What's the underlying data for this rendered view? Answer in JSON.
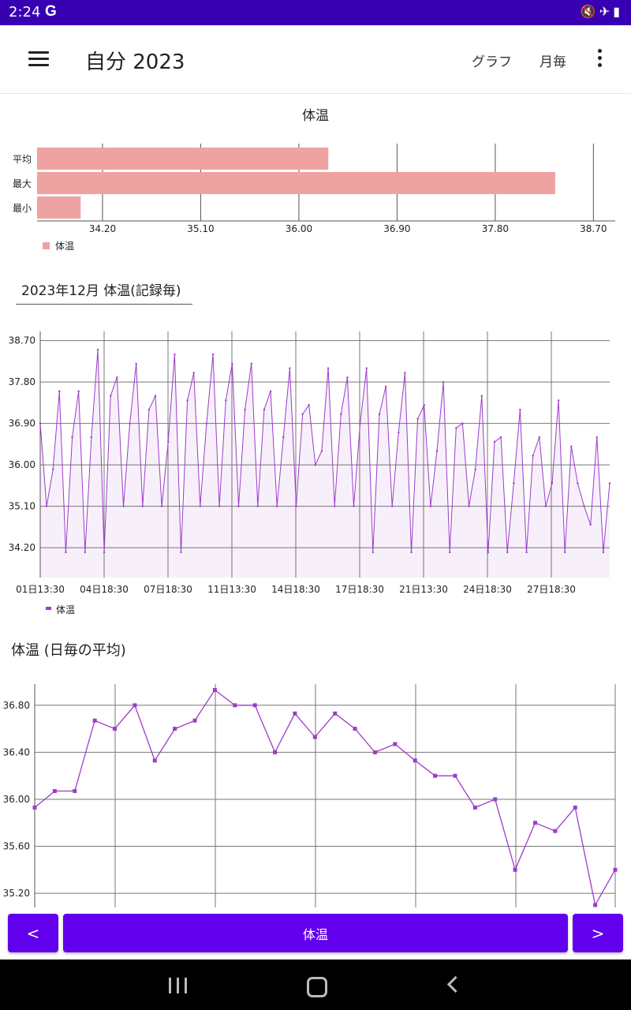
{
  "status_bar": {
    "time": "2:24",
    "g_label": "G",
    "icons": [
      "mute-icon",
      "airplane-icon",
      "battery-icon"
    ]
  },
  "app_bar": {
    "title": "自分 2023",
    "action_graph": "グラフ",
    "action_monthly": "月毎"
  },
  "summary_chart": {
    "title": "体温",
    "legend": "体温",
    "chart_data": {
      "type": "bar",
      "orientation": "horizontal",
      "title": "体温",
      "categories": [
        "平均",
        "最大",
        "最小"
      ],
      "values": [
        36.27,
        38.35,
        34.0
      ],
      "xlim": [
        33.6,
        38.9
      ],
      "x_ticks": [
        34.2,
        35.1,
        36.0,
        36.9,
        37.8,
        38.7
      ],
      "x_tick_labels": [
        "34.20",
        "35.10",
        "36.00",
        "36.90",
        "37.80",
        "38.70"
      ],
      "legend": "体温",
      "color": "#efa2a2"
    }
  },
  "spinner": {
    "selected": "2023年12月 体温(記録毎)"
  },
  "records_chart": {
    "legend": "体温",
    "chart_data": {
      "type": "line",
      "x_labels": [
        "01日13:30",
        "04日18:30",
        "07日18:30",
        "11日13:30",
        "14日18:30",
        "17日18:30",
        "21日13:30",
        "24日18:30",
        "27日18:30"
      ],
      "y_ticks": [
        34.2,
        35.1,
        36.0,
        36.9,
        37.8,
        38.7
      ],
      "y_tick_labels": [
        "34.20",
        "35.10",
        "36.00",
        "36.90",
        "37.80",
        "38.70"
      ],
      "ylim": [
        33.55,
        38.9
      ],
      "series": [
        {
          "name": "体温",
          "color": "#9c3cc8",
          "values": [
            36.9,
            35.1,
            35.9,
            37.6,
            34.1,
            36.6,
            37.6,
            34.1,
            36.6,
            38.5,
            34.1,
            37.5,
            37.9,
            35.1,
            36.9,
            38.2,
            35.1,
            37.2,
            37.5,
            35.1,
            36.5,
            38.4,
            34.1,
            37.4,
            38.0,
            35.1,
            36.9,
            38.4,
            35.1,
            37.4,
            38.2,
            35.1,
            37.2,
            38.2,
            35.1,
            37.2,
            37.6,
            35.1,
            36.6,
            38.1,
            35.1,
            37.1,
            37.3,
            36.0,
            36.3,
            38.1,
            35.1,
            37.1,
            37.9,
            35.1,
            36.9,
            38.1,
            34.1,
            37.1,
            37.7,
            35.1,
            36.7,
            38.0,
            34.1,
            37.0,
            37.3,
            35.1,
            36.3,
            37.8,
            34.1,
            36.8,
            36.9,
            35.1,
            35.9,
            37.5,
            34.1,
            36.5,
            36.6,
            34.1,
            35.6,
            37.2,
            34.1,
            36.2,
            36.6,
            35.1,
            35.6,
            37.4,
            34.1,
            36.4,
            35.6,
            35.1,
            34.7,
            36.6,
            34.1,
            35.6
          ]
        }
      ]
    }
  },
  "daily_chart": {
    "title": "体温 (日毎の平均)",
    "chart_data": {
      "type": "line",
      "title": "体温 (日毎の平均)",
      "y_ticks": [
        35.2,
        35.6,
        36.0,
        36.4,
        36.8
      ],
      "y_tick_labels": [
        "35.20",
        "35.60",
        "36.00",
        "36.40",
        "36.80"
      ],
      "ylim": [
        35.08,
        36.98
      ],
      "series": [
        {
          "name": "体温",
          "color": "#9c3cc8",
          "values": [
            35.93,
            36.07,
            36.07,
            36.67,
            36.6,
            36.8,
            36.33,
            36.6,
            36.67,
            36.93,
            36.8,
            36.8,
            36.4,
            36.73,
            36.53,
            36.73,
            36.6,
            36.4,
            36.47,
            36.33,
            36.2,
            36.2,
            35.93,
            36.0,
            35.4,
            35.8,
            35.73,
            35.93,
            35.1,
            35.4
          ]
        }
      ]
    }
  },
  "bottom_buttons": {
    "prev": "<",
    "center": "体温",
    "next": ">"
  },
  "colors": {
    "status_bar": "#3700b3",
    "accent": "#6200ee",
    "bar": "#efa2a2",
    "line": "#9c3cc8"
  },
  "nav_bar": {
    "icons": [
      "recent-apps-icon",
      "home-icon",
      "back-icon"
    ]
  }
}
